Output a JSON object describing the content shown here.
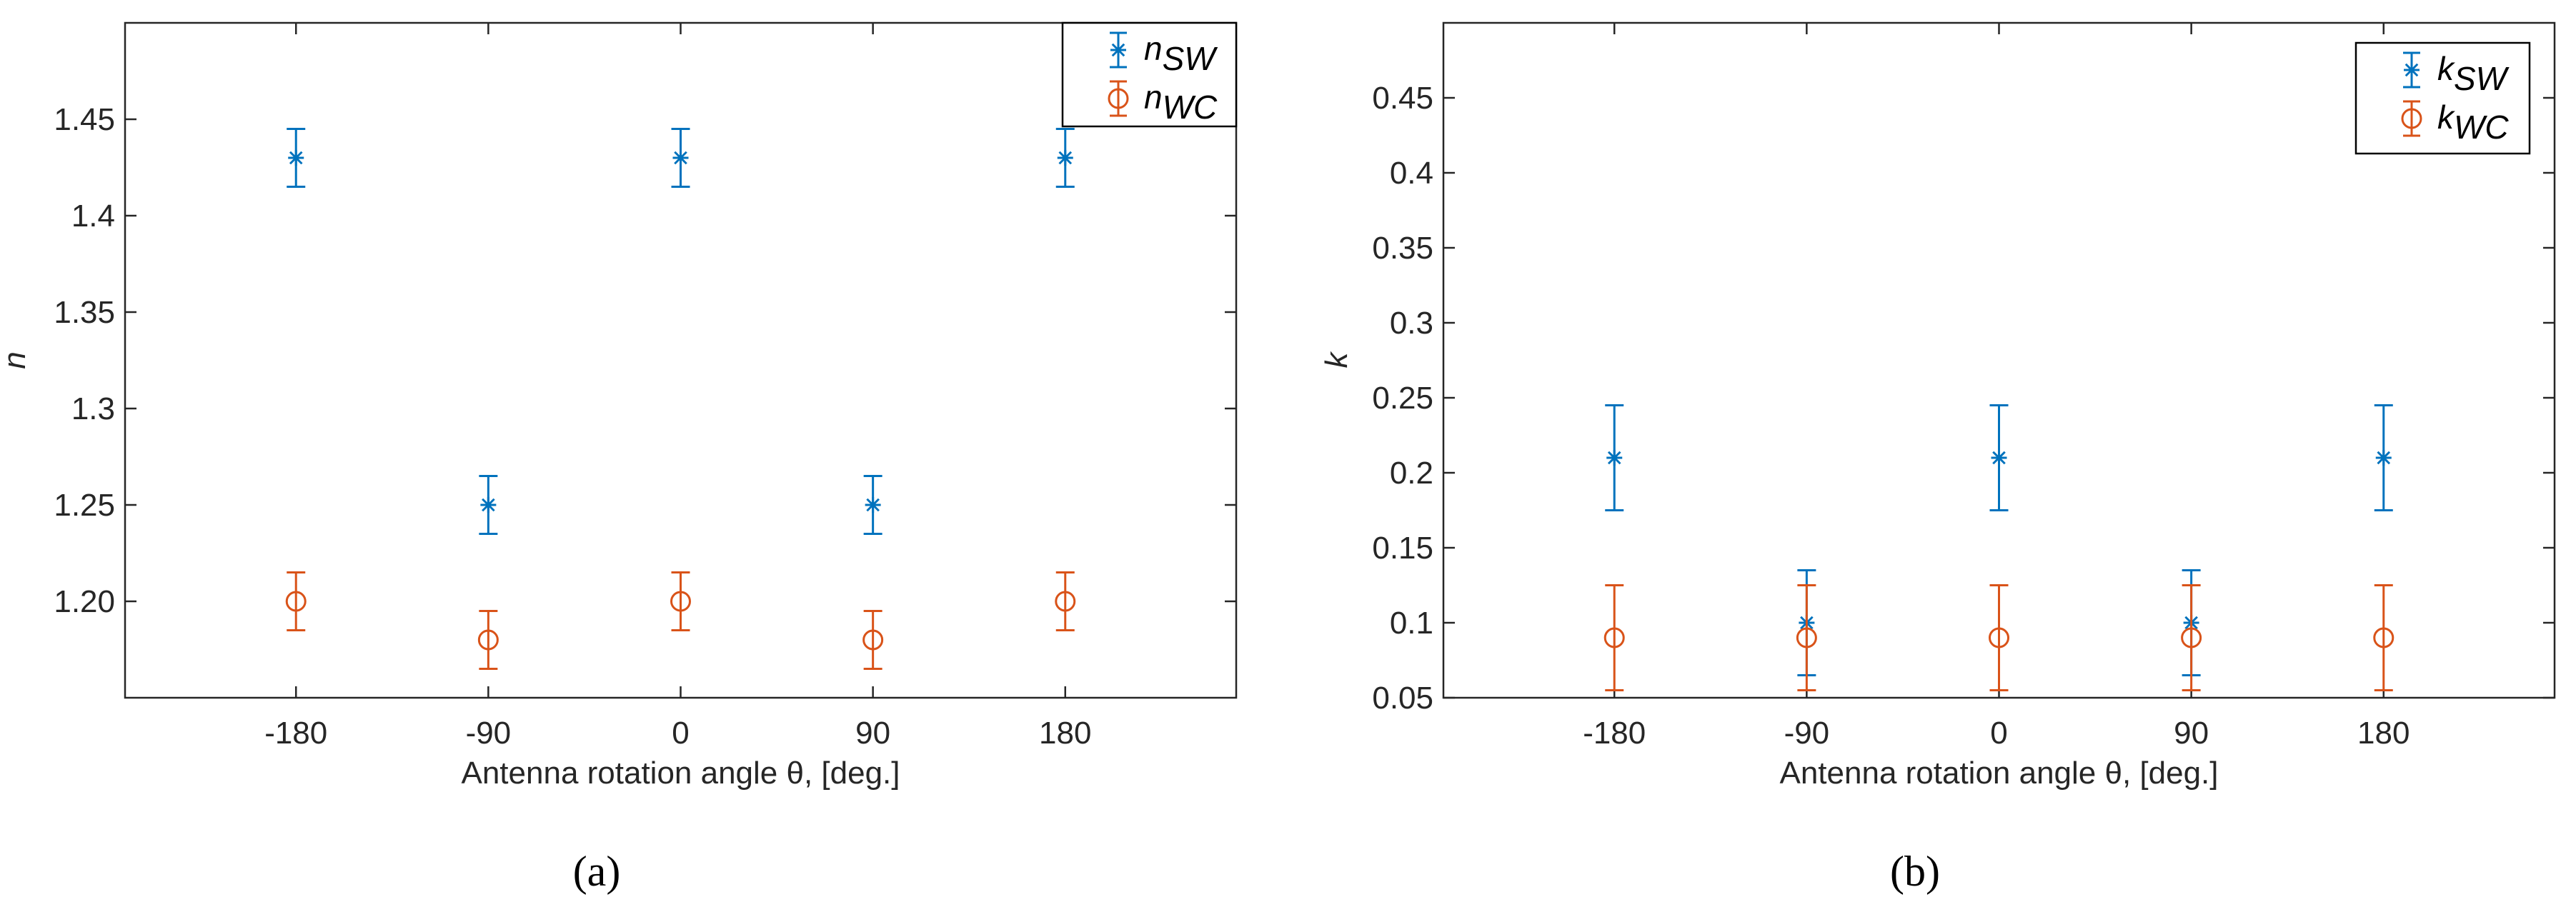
{
  "chart_data": [
    {
      "type": "scatter",
      "panel": "a",
      "caption": "(a)",
      "xlabel": "Antenna rotation angle θ, [deg.]",
      "ylabel": "n",
      "xlim": [
        -260,
        260
      ],
      "ylim": [
        1.15,
        1.5
      ],
      "xticks": [
        "-180",
        "-90",
        "0",
        "90",
        "180"
      ],
      "xtick_values": [
        -180,
        -90,
        0,
        90,
        180
      ],
      "yticks": [
        "1.20",
        "1.25",
        "1.3",
        "1.35",
        "1.4",
        "1.45"
      ],
      "ytick_values": [
        1.2,
        1.25,
        1.3,
        1.35,
        1.4,
        1.45
      ],
      "legend_position": "top-right",
      "series": [
        {
          "name": "n_SW",
          "label_main": "n",
          "label_sub": "SW",
          "color": "#0072BD",
          "marker": "asterisk",
          "x": [
            -180,
            -90,
            0,
            90,
            180
          ],
          "y": [
            1.43,
            1.25,
            1.43,
            1.25,
            1.43
          ],
          "err": [
            0.015,
            0.015,
            0.015,
            0.015,
            0.015
          ]
        },
        {
          "name": "n_WC",
          "label_main": "n",
          "label_sub": "WC",
          "color": "#D95319",
          "marker": "circle",
          "x": [
            -180,
            -90,
            0,
            90,
            180
          ],
          "y": [
            1.2,
            1.18,
            1.2,
            1.18,
            1.2
          ],
          "err": [
            0.015,
            0.015,
            0.015,
            0.015,
            0.015
          ]
        }
      ]
    },
    {
      "type": "scatter",
      "panel": "b",
      "caption": "(b)",
      "xlabel": "Antenna rotation angle θ, [deg.]",
      "ylabel": "k",
      "xlim": [
        -260,
        260
      ],
      "ylim": [
        0.05,
        0.5
      ],
      "xticks": [
        "-180",
        "-90",
        "0",
        "90",
        "180"
      ],
      "xtick_values": [
        -180,
        -90,
        0,
        90,
        180
      ],
      "yticks": [
        "0.05",
        "0.1",
        "0.15",
        "0.2",
        "0.25",
        "0.3",
        "0.35",
        "0.4",
        "0.45"
      ],
      "ytick_values": [
        0.05,
        0.1,
        0.15,
        0.2,
        0.25,
        0.3,
        0.35,
        0.4,
        0.45
      ],
      "legend_position": "top-right",
      "series": [
        {
          "name": "k_SW",
          "label_main": "k",
          "label_sub": "SW",
          "color": "#0072BD",
          "marker": "asterisk",
          "x": [
            -180,
            -90,
            0,
            90,
            180
          ],
          "y": [
            0.21,
            0.1,
            0.21,
            0.1,
            0.21
          ],
          "err": [
            0.035,
            0.035,
            0.035,
            0.035,
            0.035
          ]
        },
        {
          "name": "k_WC",
          "label_main": "k",
          "label_sub": "WC",
          "color": "#D95319",
          "marker": "circle",
          "x": [
            -180,
            -90,
            0,
            90,
            180
          ],
          "y": [
            0.09,
            0.09,
            0.09,
            0.09,
            0.09
          ],
          "err": [
            0.035,
            0.035,
            0.035,
            0.035,
            0.035
          ]
        }
      ]
    }
  ]
}
